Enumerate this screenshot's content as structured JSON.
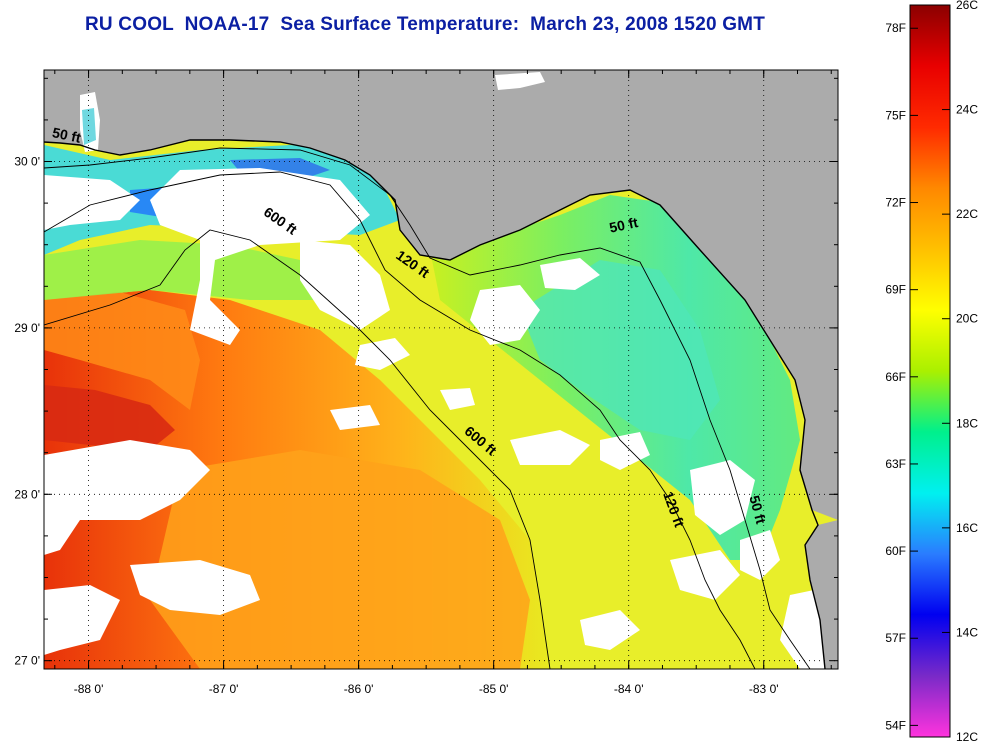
{
  "title": "RU COOL  NOAA-17  Sea Surface Temperature:  March 23, 2008 1520 GMT",
  "map": {
    "lon_range": [
      -88.33,
      -82.45
    ],
    "lat_range": [
      26.95,
      30.55
    ],
    "lon_ticks": [
      {
        "value": -88,
        "label": "-88 0'"
      },
      {
        "value": -87,
        "label": "-87 0'"
      },
      {
        "value": -86,
        "label": "-86 0'"
      },
      {
        "value": -85,
        "label": "-85 0'"
      },
      {
        "value": -84,
        "label": "-84 0'"
      },
      {
        "value": -83,
        "label": "-83 0'"
      }
    ],
    "lat_ticks": [
      {
        "value": 30,
        "label": "30 0'"
      },
      {
        "value": 29,
        "label": "29 0'"
      },
      {
        "value": 28,
        "label": "28 0'"
      },
      {
        "value": 27,
        "label": "27 0'"
      }
    ],
    "grid": "dotted",
    "isobath_labels": [
      {
        "text": "50 ft",
        "lon": -88.17,
        "lat": 30.13,
        "angle": 12
      },
      {
        "text": "600 ft",
        "lon": -86.6,
        "lat": 29.62,
        "angle": 35
      },
      {
        "text": "120 ft",
        "lon": -85.62,
        "lat": 29.36,
        "angle": 35
      },
      {
        "text": "50 ft",
        "lon": -84.03,
        "lat": 29.59,
        "angle": -12
      },
      {
        "text": "600 ft",
        "lon": -85.12,
        "lat": 28.3,
        "angle": 40
      },
      {
        "text": "120 ft",
        "lon": -83.7,
        "lat": 27.9,
        "angle": 70
      },
      {
        "text": "50 ft",
        "lon": -83.08,
        "lat": 27.9,
        "angle": 75
      }
    ],
    "colors": {
      "land": "#ababab",
      "cloud": "#ffffff",
      "coast": "#000000"
    }
  },
  "colorbar": {
    "range_c": [
      12,
      26
    ],
    "celsius_labels": [
      "26C",
      "24C",
      "22C",
      "20C",
      "18C",
      "16C",
      "14C",
      "12C"
    ],
    "fahrenheit_labels": [
      "78F",
      "75F",
      "72F",
      "69F",
      "66F",
      "63F",
      "60F",
      "57F",
      "54F"
    ],
    "stops": [
      "#ff33dd",
      "#7a2ac8",
      "#0000f0",
      "#2a7cff",
      "#00f0f0",
      "#00f08c",
      "#aaf000",
      "#ffff00",
      "#ffc000",
      "#ff8800",
      "#ff2a00",
      "#e80000",
      "#8b0000"
    ]
  }
}
